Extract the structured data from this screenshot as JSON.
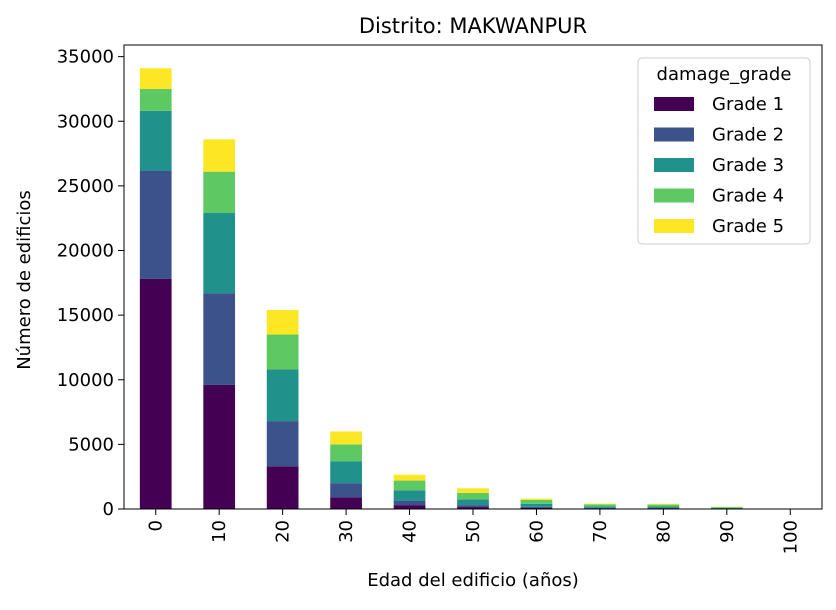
{
  "chart_data": {
    "type": "bar",
    "stacked": true,
    "title": "Distrito: MAKWANPUR",
    "xlabel": "Edad del edificio (años)",
    "ylabel": "Número de edificios",
    "categories": [
      "0",
      "10",
      "20",
      "30",
      "40",
      "50",
      "60",
      "70",
      "80",
      "90",
      "100"
    ],
    "yticks": [
      "0",
      "5000",
      "10000",
      "15000",
      "20000",
      "25000",
      "30000",
      "35000"
    ],
    "ylim": [
      0,
      35900
    ],
    "grid": false,
    "legend": {
      "title": "damage_grade",
      "placement": "top-right"
    },
    "series": [
      {
        "name": "Grade 1",
        "color": "#440154",
        "values": [
          17800,
          9600,
          3300,
          900,
          300,
          150,
          80,
          40,
          40,
          20,
          5
        ]
      },
      {
        "name": "Grade 2",
        "color": "#3b528b",
        "values": [
          8400,
          7100,
          3500,
          1100,
          350,
          150,
          90,
          50,
          40,
          20,
          5
        ]
      },
      {
        "name": "Grade 3",
        "color": "#21918c",
        "values": [
          4600,
          6200,
          4000,
          1700,
          800,
          450,
          230,
          120,
          110,
          50,
          10
        ]
      },
      {
        "name": "Grade 4",
        "color": "#5ec962",
        "values": [
          1700,
          3200,
          2700,
          1300,
          750,
          500,
          300,
          150,
          150,
          60,
          10
        ]
      },
      {
        "name": "Grade 5",
        "color": "#fde725",
        "values": [
          1600,
          2500,
          1900,
          1000,
          450,
          350,
          100,
          60,
          60,
          30,
          5
        ]
      }
    ]
  }
}
